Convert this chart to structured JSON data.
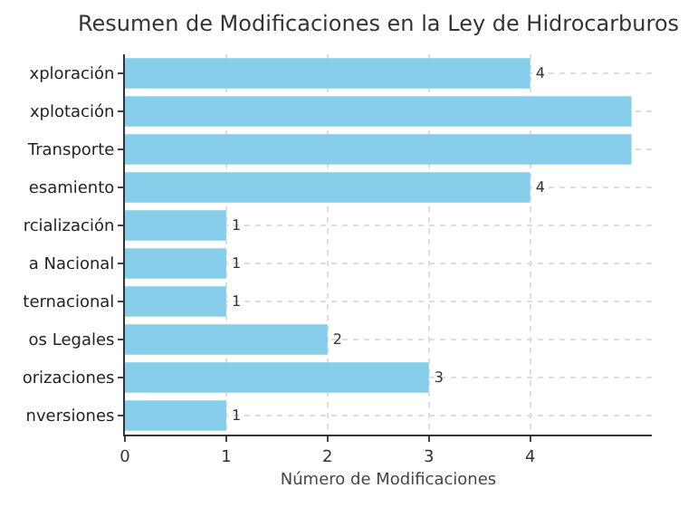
{
  "chart_data": {
    "type": "bar",
    "orientation": "horizontal",
    "title": "Resumen de Modificaciones en la Ley de Hidrocarburos",
    "xlabel": "Número de Modificaciones",
    "categories": [
      "xploración",
      "xplotación",
      "Transporte",
      "esamiento",
      "rcialización",
      "a Nacional",
      "ternacional",
      "os Legales",
      "orizaciones",
      "nversiones"
    ],
    "values": [
      4,
      5,
      5,
      4,
      1,
      1,
      1,
      2,
      3,
      1
    ],
    "value_labels": [
      "4",
      null,
      null,
      "4",
      "1",
      "1",
      "1",
      "2",
      "3",
      "1"
    ],
    "color": "#87ceeb",
    "xlim": [
      0,
      5.2
    ],
    "xticks": [
      0,
      1,
      2,
      3,
      4
    ],
    "grid": true
  }
}
